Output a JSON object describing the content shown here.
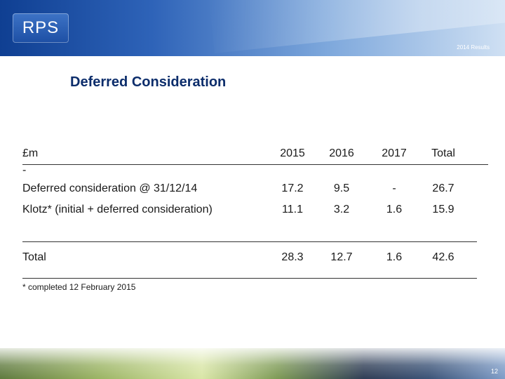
{
  "header": {
    "logo_text": "RPS",
    "caption": "2014 Results"
  },
  "slide": {
    "title": "Deferred Consideration"
  },
  "table": {
    "currency_label": "£m",
    "header_dash": "-",
    "columns": [
      "2015",
      "2016",
      "2017",
      "Total"
    ],
    "rows": [
      {
        "label": "Deferred consideration @ 31/12/14",
        "values": [
          "17.2",
          "9.5",
          "-",
          "26.7"
        ]
      },
      {
        "label": "Klotz* (initial + deferred consideration)",
        "values": [
          "11.1",
          "3.2",
          "1.6",
          "15.9"
        ]
      }
    ],
    "total": {
      "label": "Total",
      "values": [
        "28.3",
        "12.7",
        "1.6",
        "42.6"
      ]
    }
  },
  "footnote": "* completed 12 February 2015",
  "page_number": "12"
}
